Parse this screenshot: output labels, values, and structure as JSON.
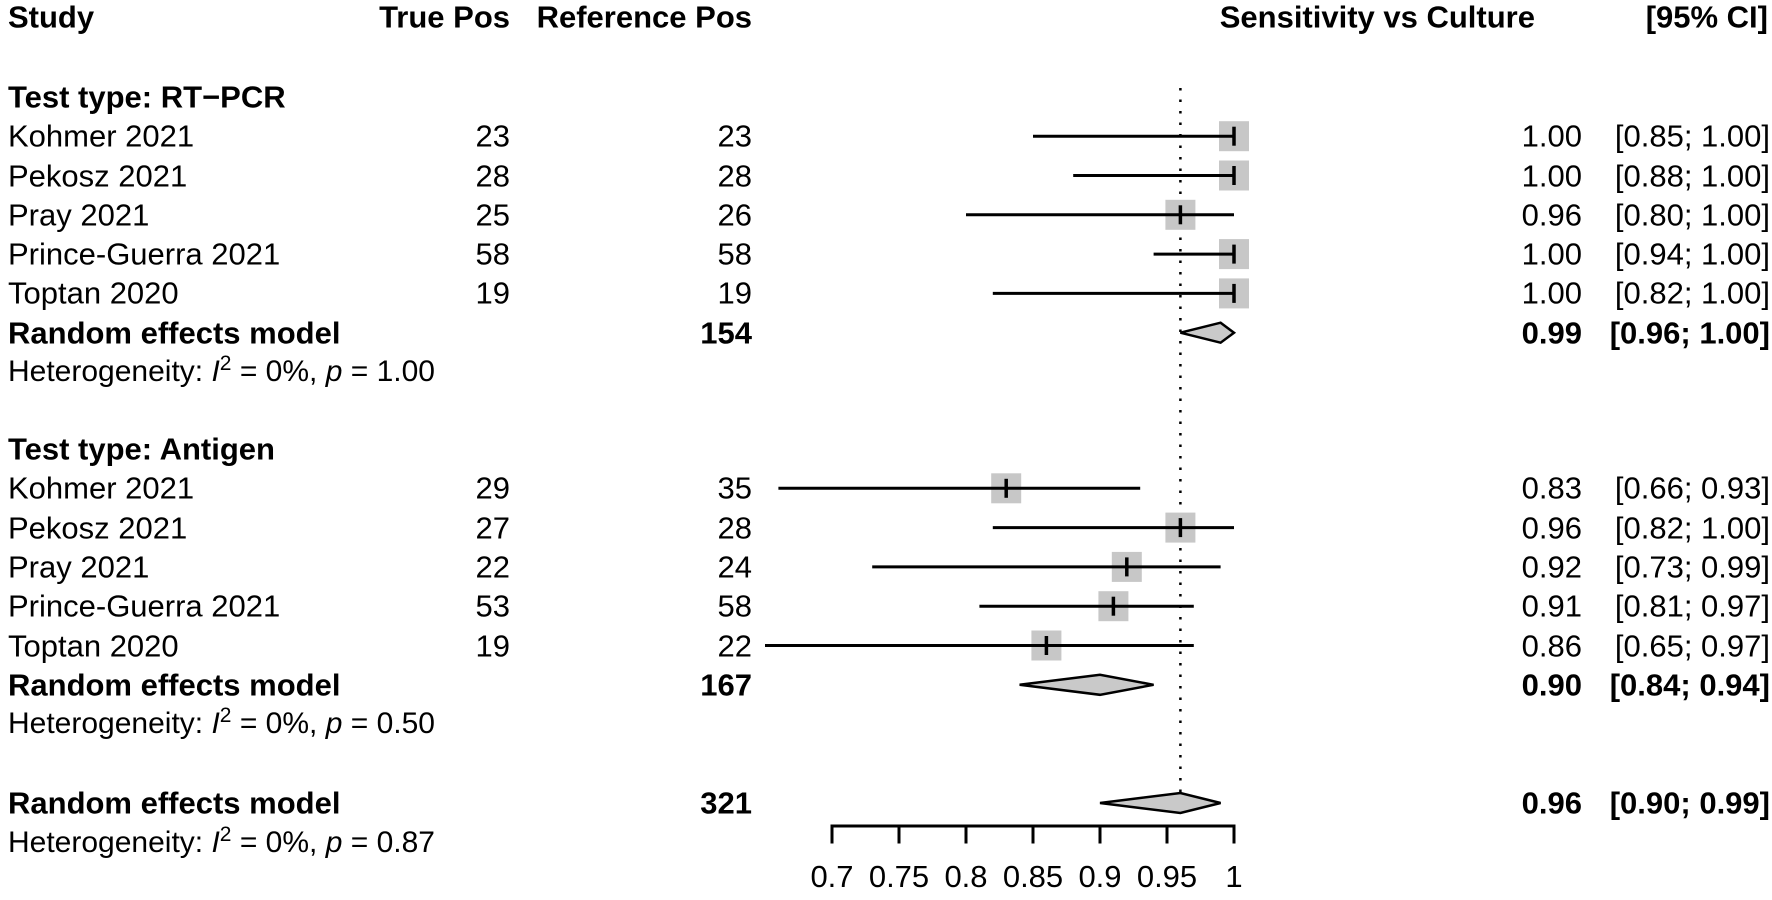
{
  "header": {
    "study": "Study",
    "true_pos": "True Pos",
    "reference_pos": "Reference Pos",
    "sensitivity": "Sensitivity vs Culture",
    "ci": "[95% CI]"
  },
  "chart_data": {
    "type": "forest",
    "x_axis": {
      "range": [
        0.7,
        1.0
      ],
      "ticks": [
        0.7,
        0.75,
        0.8,
        0.85,
        0.9,
        0.95,
        1.0
      ],
      "tick_labels": [
        "0.7",
        "0.75",
        "0.8",
        "0.85",
        "0.9",
        "0.95",
        "1"
      ]
    },
    "reference_line": 0.96,
    "colors": {
      "marker_fill": "#c7c7c7",
      "diamond_fill": "#c9c9c9",
      "line": "#000000"
    },
    "groups": [
      {
        "label": "Test type: RT−PCR",
        "studies": [
          {
            "study": "Kohmer 2021",
            "true_pos": "23",
            "reference_pos": "23",
            "sensitivity": 1.0,
            "ci_low": 0.85,
            "ci_high": 1.0,
            "sensitivity_text": "1.00",
            "ci_text": "[0.85; 1.00]"
          },
          {
            "study": "Pekosz 2021",
            "true_pos": "28",
            "reference_pos": "28",
            "sensitivity": 1.0,
            "ci_low": 0.88,
            "ci_high": 1.0,
            "sensitivity_text": "1.00",
            "ci_text": "[0.88; 1.00]"
          },
          {
            "study": "Pray 2021",
            "true_pos": "25",
            "reference_pos": "26",
            "sensitivity": 0.96,
            "ci_low": 0.8,
            "ci_high": 1.0,
            "sensitivity_text": "0.96",
            "ci_text": "[0.80; 1.00]"
          },
          {
            "study": "Prince-Guerra 2021",
            "true_pos": "58",
            "reference_pos": "58",
            "sensitivity": 1.0,
            "ci_low": 0.94,
            "ci_high": 1.0,
            "sensitivity_text": "1.00",
            "ci_text": "[0.94; 1.00]"
          },
          {
            "study": "Toptan 2020",
            "true_pos": "19",
            "reference_pos": "19",
            "sensitivity": 1.0,
            "ci_low": 0.82,
            "ci_high": 1.0,
            "sensitivity_text": "1.00",
            "ci_text": "[0.82; 1.00]"
          }
        ],
        "summary": {
          "label": "Random effects model",
          "reference_pos": "154",
          "sensitivity": 0.99,
          "ci_low": 0.96,
          "ci_high": 1.0,
          "sensitivity_text": "0.99",
          "ci_text": "[0.96; 1.00]"
        },
        "heterogeneity": [
          {
            "text": "Heterogeneity: "
          },
          {
            "text": "I",
            "style": "italic"
          },
          {
            "text": "2",
            "style": "sup"
          },
          {
            "text": " = 0%, "
          },
          {
            "text": "p",
            "style": "italic"
          },
          {
            "text": " = 1.00"
          }
        ]
      },
      {
        "label": "Test type: Antigen",
        "studies": [
          {
            "study": "Kohmer 2021",
            "true_pos": "29",
            "reference_pos": "35",
            "sensitivity": 0.83,
            "ci_low": 0.66,
            "ci_high": 0.93,
            "sensitivity_text": "0.83",
            "ci_text": "[0.66; 0.93]"
          },
          {
            "study": "Pekosz 2021",
            "true_pos": "27",
            "reference_pos": "28",
            "sensitivity": 0.96,
            "ci_low": 0.82,
            "ci_high": 1.0,
            "sensitivity_text": "0.96",
            "ci_text": "[0.82; 1.00]"
          },
          {
            "study": "Pray 2021",
            "true_pos": "22",
            "reference_pos": "24",
            "sensitivity": 0.92,
            "ci_low": 0.73,
            "ci_high": 0.99,
            "sensitivity_text": "0.92",
            "ci_text": "[0.73; 0.99]"
          },
          {
            "study": "Prince-Guerra 2021",
            "true_pos": "53",
            "reference_pos": "58",
            "sensitivity": 0.91,
            "ci_low": 0.81,
            "ci_high": 0.97,
            "sensitivity_text": "0.91",
            "ci_text": "[0.81; 0.97]"
          },
          {
            "study": "Toptan 2020",
            "true_pos": "19",
            "reference_pos": "22",
            "sensitivity": 0.86,
            "ci_low": 0.65,
            "ci_high": 0.97,
            "sensitivity_text": "0.86",
            "ci_text": "[0.65; 0.97]"
          }
        ],
        "summary": {
          "label": "Random effects model",
          "reference_pos": "167",
          "sensitivity": 0.9,
          "ci_low": 0.84,
          "ci_high": 0.94,
          "sensitivity_text": "0.90",
          "ci_text": "[0.84; 0.94]"
        },
        "heterogeneity": [
          {
            "text": "Heterogeneity: "
          },
          {
            "text": "I",
            "style": "italic"
          },
          {
            "text": "2",
            "style": "sup"
          },
          {
            "text": " = 0%, "
          },
          {
            "text": "p",
            "style": "italic"
          },
          {
            "text": " = 0.50"
          }
        ]
      }
    ],
    "overall": {
      "summary": {
        "label": "Random effects model",
        "reference_pos": "321",
        "sensitivity": 0.96,
        "ci_low": 0.9,
        "ci_high": 0.99,
        "sensitivity_text": "0.96",
        "ci_text": "[0.90; 0.99]"
      },
      "heterogeneity": [
        {
          "text": "Heterogeneity: "
        },
        {
          "text": "I",
          "style": "italic"
        },
        {
          "text": "2",
          "style": "sup"
        },
        {
          "text": " = 0%, "
        },
        {
          "text": "p",
          "style": "italic"
        },
        {
          "text": " = 0.87"
        }
      ]
    }
  }
}
